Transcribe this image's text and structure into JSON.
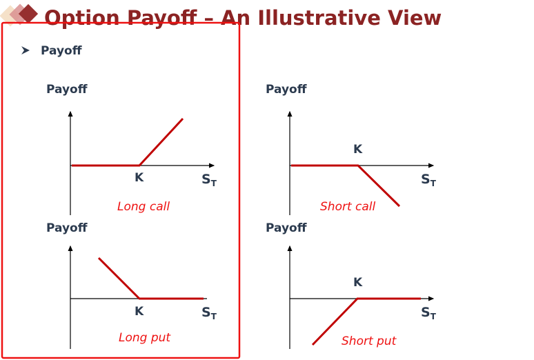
{
  "slide": {
    "title": "Option Payoff – An Illustrative View",
    "bullet": "Payoff",
    "colors": {
      "title": "#8b2323",
      "payoff_line": "#c00000",
      "caption": "#ee1111",
      "highlight_box": "#ee1111"
    }
  },
  "panels": [
    {
      "ylabel": "Payoff",
      "strike": "K",
      "xlabel": "S",
      "xlabel_sub": "T",
      "caption": "Long call"
    },
    {
      "ylabel": "Payoff",
      "strike": "K",
      "xlabel": "S",
      "xlabel_sub": "T",
      "caption": "Short call"
    },
    {
      "ylabel": "Payoff",
      "strike": "K",
      "xlabel": "S",
      "xlabel_sub": "T",
      "caption": "Long put"
    },
    {
      "ylabel": "Payoff",
      "strike": "K",
      "xlabel": "S",
      "xlabel_sub": "T",
      "caption": "Short put"
    }
  ]
}
